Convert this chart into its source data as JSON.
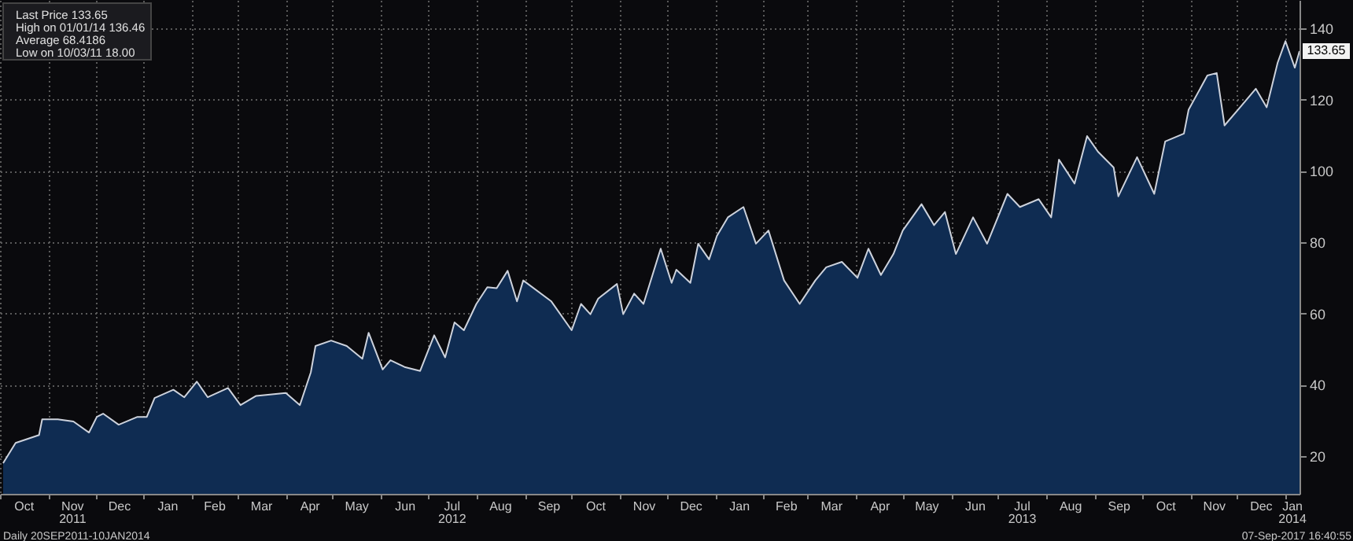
{
  "chart_data": {
    "type": "area",
    "grid": true,
    "xlim": [
      "2011-10-01",
      "2014-01-10"
    ],
    "ylim": [
      9.4,
      148
    ],
    "yticks": [
      20,
      40,
      60,
      80,
      100,
      120,
      140
    ],
    "xticks": [
      {
        "value": "2011-10-01",
        "label": null
      },
      {
        "value": "2011-10-16",
        "label": "Oct"
      },
      {
        "value": "2011-11-01",
        "label": null
      },
      {
        "value": "2011-11-16",
        "label": "Nov\n2011"
      },
      {
        "value": "2011-12-01",
        "label": null
      },
      {
        "value": "2011-12-16",
        "label": "Dec"
      },
      {
        "value": "2012-01-01",
        "label": null
      },
      {
        "value": "2012-01-16",
        "label": "Jan"
      },
      {
        "value": "2012-02-01",
        "label": null
      },
      {
        "value": "2012-02-15",
        "label": "Feb"
      },
      {
        "value": "2012-03-01",
        "label": null
      },
      {
        "value": "2012-03-16",
        "label": "Mar"
      },
      {
        "value": "2012-04-01",
        "label": null
      },
      {
        "value": "2012-04-16",
        "label": "Apr"
      },
      {
        "value": "2012-05-01",
        "label": null
      },
      {
        "value": "2012-05-16",
        "label": "May"
      },
      {
        "value": "2012-06-01",
        "label": null
      },
      {
        "value": "2012-06-16",
        "label": "Jun"
      },
      {
        "value": "2012-07-01",
        "label": null
      },
      {
        "value": "2012-07-16",
        "label": "Jul\n2012"
      },
      {
        "value": "2012-08-01",
        "label": null
      },
      {
        "value": "2012-08-16",
        "label": "Aug"
      },
      {
        "value": "2012-09-01",
        "label": null
      },
      {
        "value": "2012-09-16",
        "label": "Sep"
      },
      {
        "value": "2012-10-01",
        "label": null
      },
      {
        "value": "2012-10-16",
        "label": "Oct"
      },
      {
        "value": "2012-11-01",
        "label": null
      },
      {
        "value": "2012-11-16",
        "label": "Nov"
      },
      {
        "value": "2012-12-01",
        "label": null
      },
      {
        "value": "2012-12-16",
        "label": "Dec"
      },
      {
        "value": "2013-01-01",
        "label": null
      },
      {
        "value": "2013-01-16",
        "label": "Jan"
      },
      {
        "value": "2013-02-01",
        "label": null
      },
      {
        "value": "2013-02-15",
        "label": "Feb"
      },
      {
        "value": "2013-03-01",
        "label": null
      },
      {
        "value": "2013-03-16",
        "label": "Mar"
      },
      {
        "value": "2013-04-01",
        "label": null
      },
      {
        "value": "2013-04-16",
        "label": "Apr"
      },
      {
        "value": "2013-05-01",
        "label": null
      },
      {
        "value": "2013-05-16",
        "label": "May"
      },
      {
        "value": "2013-06-01",
        "label": null
      },
      {
        "value": "2013-06-16",
        "label": "Jun"
      },
      {
        "value": "2013-07-01",
        "label": null
      },
      {
        "value": "2013-07-16",
        "label": "Jul\n2013"
      },
      {
        "value": "2013-08-01",
        "label": null
      },
      {
        "value": "2013-08-16",
        "label": "Aug"
      },
      {
        "value": "2013-09-01",
        "label": null
      },
      {
        "value": "2013-09-16",
        "label": "Sep"
      },
      {
        "value": "2013-10-01",
        "label": null
      },
      {
        "value": "2013-10-16",
        "label": "Oct"
      },
      {
        "value": "2013-11-01",
        "label": null
      },
      {
        "value": "2013-11-16",
        "label": "Nov"
      },
      {
        "value": "2013-12-01",
        "label": null
      },
      {
        "value": "2013-12-16",
        "label": "Dec"
      },
      {
        "value": "2014-01-01",
        "label": null
      },
      {
        "value": "2014-01-05",
        "label": "Jan\n2014"
      }
    ],
    "annotations": [
      "Last Price 133.65",
      "High on 01/01/14 136.46",
      "Average 68.4186",
      "Low on 10/03/11 18.00",
      {
        "text": "133.65",
        "x": "2014-01-10",
        "y": 133.65
      },
      "Daily 20SEP2011-10JAN2014",
      "07-Sep-2017 16:40:55"
    ],
    "series": [
      {
        "color": "#0f2c52",
        "x": [
          "2011-10-03",
          "2011-10-11",
          "2011-10-26",
          "2011-10-28",
          "2011-11-07",
          "2011-11-17",
          "2011-11-27",
          "2011-12-02",
          "2011-12-06",
          "2011-12-16",
          "2011-12-28",
          "2012-01-03",
          "2012-01-08",
          "2012-01-20",
          "2012-01-27",
          "2012-02-04",
          "2012-02-11",
          "2012-02-24",
          "2012-03-03",
          "2012-03-13",
          "2012-04-01",
          "2012-04-10",
          "2012-04-17",
          "2012-04-20",
          "2012-04-30",
          "2012-05-10",
          "2012-05-20",
          "2012-05-24",
          "2012-06-02",
          "2012-06-07",
          "2012-06-16",
          "2012-06-26",
          "2012-07-05",
          "2012-07-12",
          "2012-07-18",
          "2012-07-24",
          "2012-08-01",
          "2012-08-08",
          "2012-08-14",
          "2012-08-21",
          "2012-08-27",
          "2012-08-31",
          "2012-09-18",
          "2012-10-01",
          "2012-10-07",
          "2012-10-13",
          "2012-10-18",
          "2012-10-30",
          "2012-11-03",
          "2012-11-10",
          "2012-11-16",
          "2012-11-27",
          "2012-12-04",
          "2012-12-07",
          "2012-12-16",
          "2012-12-21",
          "2012-12-28",
          "2013-01-02",
          "2013-01-09",
          "2013-01-19",
          "2013-01-27",
          "2013-02-04",
          "2013-02-14",
          "2013-02-24",
          "2013-03-06",
          "2013-03-13",
          "2013-03-23",
          "2013-04-02",
          "2013-04-09",
          "2013-04-17",
          "2013-04-25",
          "2013-05-01",
          "2013-05-13",
          "2013-05-21",
          "2013-05-28",
          "2013-06-04",
          "2013-06-15",
          "2013-06-24",
          "2013-07-07",
          "2013-07-15",
          "2013-07-27",
          "2013-08-04",
          "2013-08-09",
          "2013-08-19",
          "2013-08-27",
          "2013-09-03",
          "2013-09-13",
          "2013-09-16",
          "2013-09-28",
          "2013-10-09",
          "2013-10-16",
          "2013-10-28",
          "2013-10-31",
          "2013-11-12",
          "2013-11-18",
          "2013-11-23",
          "2013-12-03",
          "2013-12-13",
          "2013-12-20",
          "2013-12-27",
          "2014-01-01",
          "2014-01-07",
          "2014-01-10"
        ],
        "values": [
          18.0,
          23.7,
          25.9,
          30.3,
          30.3,
          29.7,
          26.6,
          31.0,
          31.9,
          28.8,
          31.0,
          31.0,
          36.3,
          38.6,
          36.5,
          40.9,
          36.5,
          39.1,
          34.3,
          36.9,
          37.7,
          34.3,
          43.5,
          50.9,
          52.4,
          50.9,
          47.3,
          54.6,
          44.3,
          46.9,
          45.0,
          43.9,
          53.9,
          47.7,
          57.5,
          55.3,
          62.7,
          67.4,
          67.1,
          72.0,
          63.4,
          69.3,
          63.4,
          55.3,
          62.7,
          59.8,
          64.2,
          68.3,
          59.8,
          65.6,
          62.7,
          78.2,
          68.6,
          72.3,
          68.6,
          79.6,
          75.2,
          81.8,
          87.0,
          89.9,
          79.6,
          83.3,
          69.3,
          62.7,
          69.3,
          73.0,
          74.5,
          70.0,
          78.2,
          70.8,
          76.7,
          83.3,
          90.7,
          84.8,
          88.5,
          76.7,
          87.0,
          79.6,
          93.6,
          89.9,
          92.1,
          87.0,
          103.2,
          96.5,
          109.8,
          105.4,
          101.0,
          92.9,
          103.9,
          93.6,
          108.3,
          110.5,
          117.2,
          126.8,
          127.5,
          112.8,
          117.9,
          123.1,
          117.9,
          130.4,
          136.46,
          129.0,
          133.65
        ]
      }
    ]
  }
}
